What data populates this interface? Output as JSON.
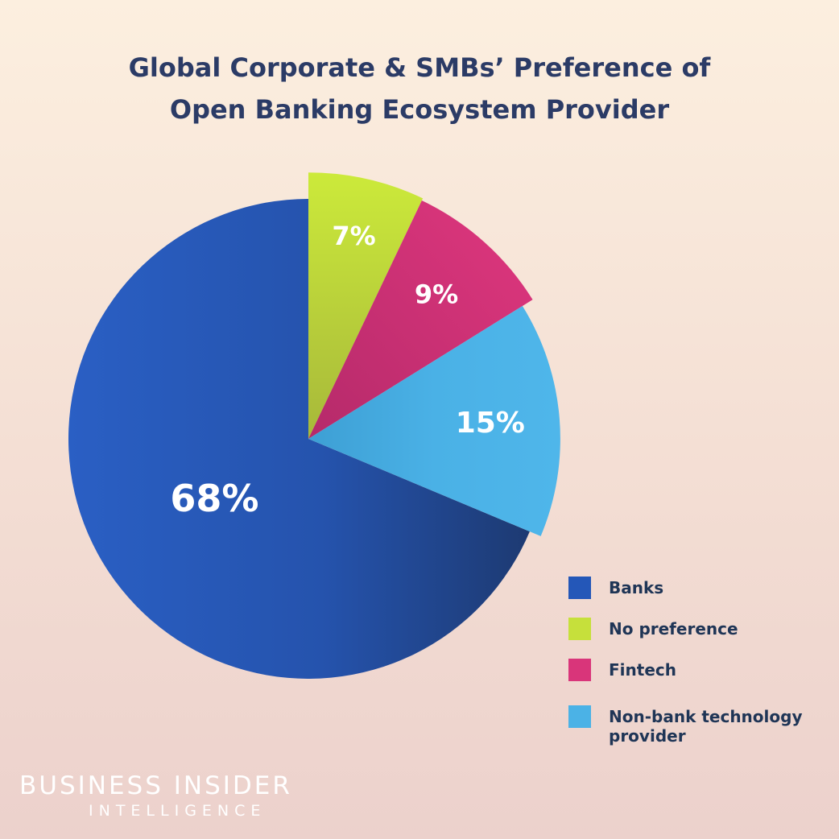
{
  "chart_data": {
    "type": "pie",
    "title_lines": [
      "Global Corporate & SMBs’ Preference of",
      "Open Banking Ecosystem Provider"
    ],
    "categories": [
      "Banks",
      "No preference",
      "Fintech",
      "Non-bank technology provider"
    ],
    "values": [
      68,
      7,
      9,
      15
    ],
    "value_labels": [
      "68%",
      "7%",
      "9%",
      "15%"
    ],
    "colors": [
      "#2457b8",
      "#c6e03b",
      "#d9357a",
      "#4bb2e6"
    ],
    "legend_placement": "bottom-right",
    "exploded": [
      "No preference",
      "Fintech",
      "Non-bank technology provider"
    ]
  },
  "legend": {
    "items": [
      {
        "label": " Banks",
        "color": "#2457b8"
      },
      {
        "label": "No preference",
        "color": "#c6e03b"
      },
      {
        "label": "Fintech",
        "color": "#d9357a"
      },
      {
        "label": "Non-bank technology provider",
        "color": "#4bb2e6"
      }
    ]
  },
  "brand": {
    "main": "BUSINESS INSIDER",
    "sub": "INTELLIGENCE"
  }
}
